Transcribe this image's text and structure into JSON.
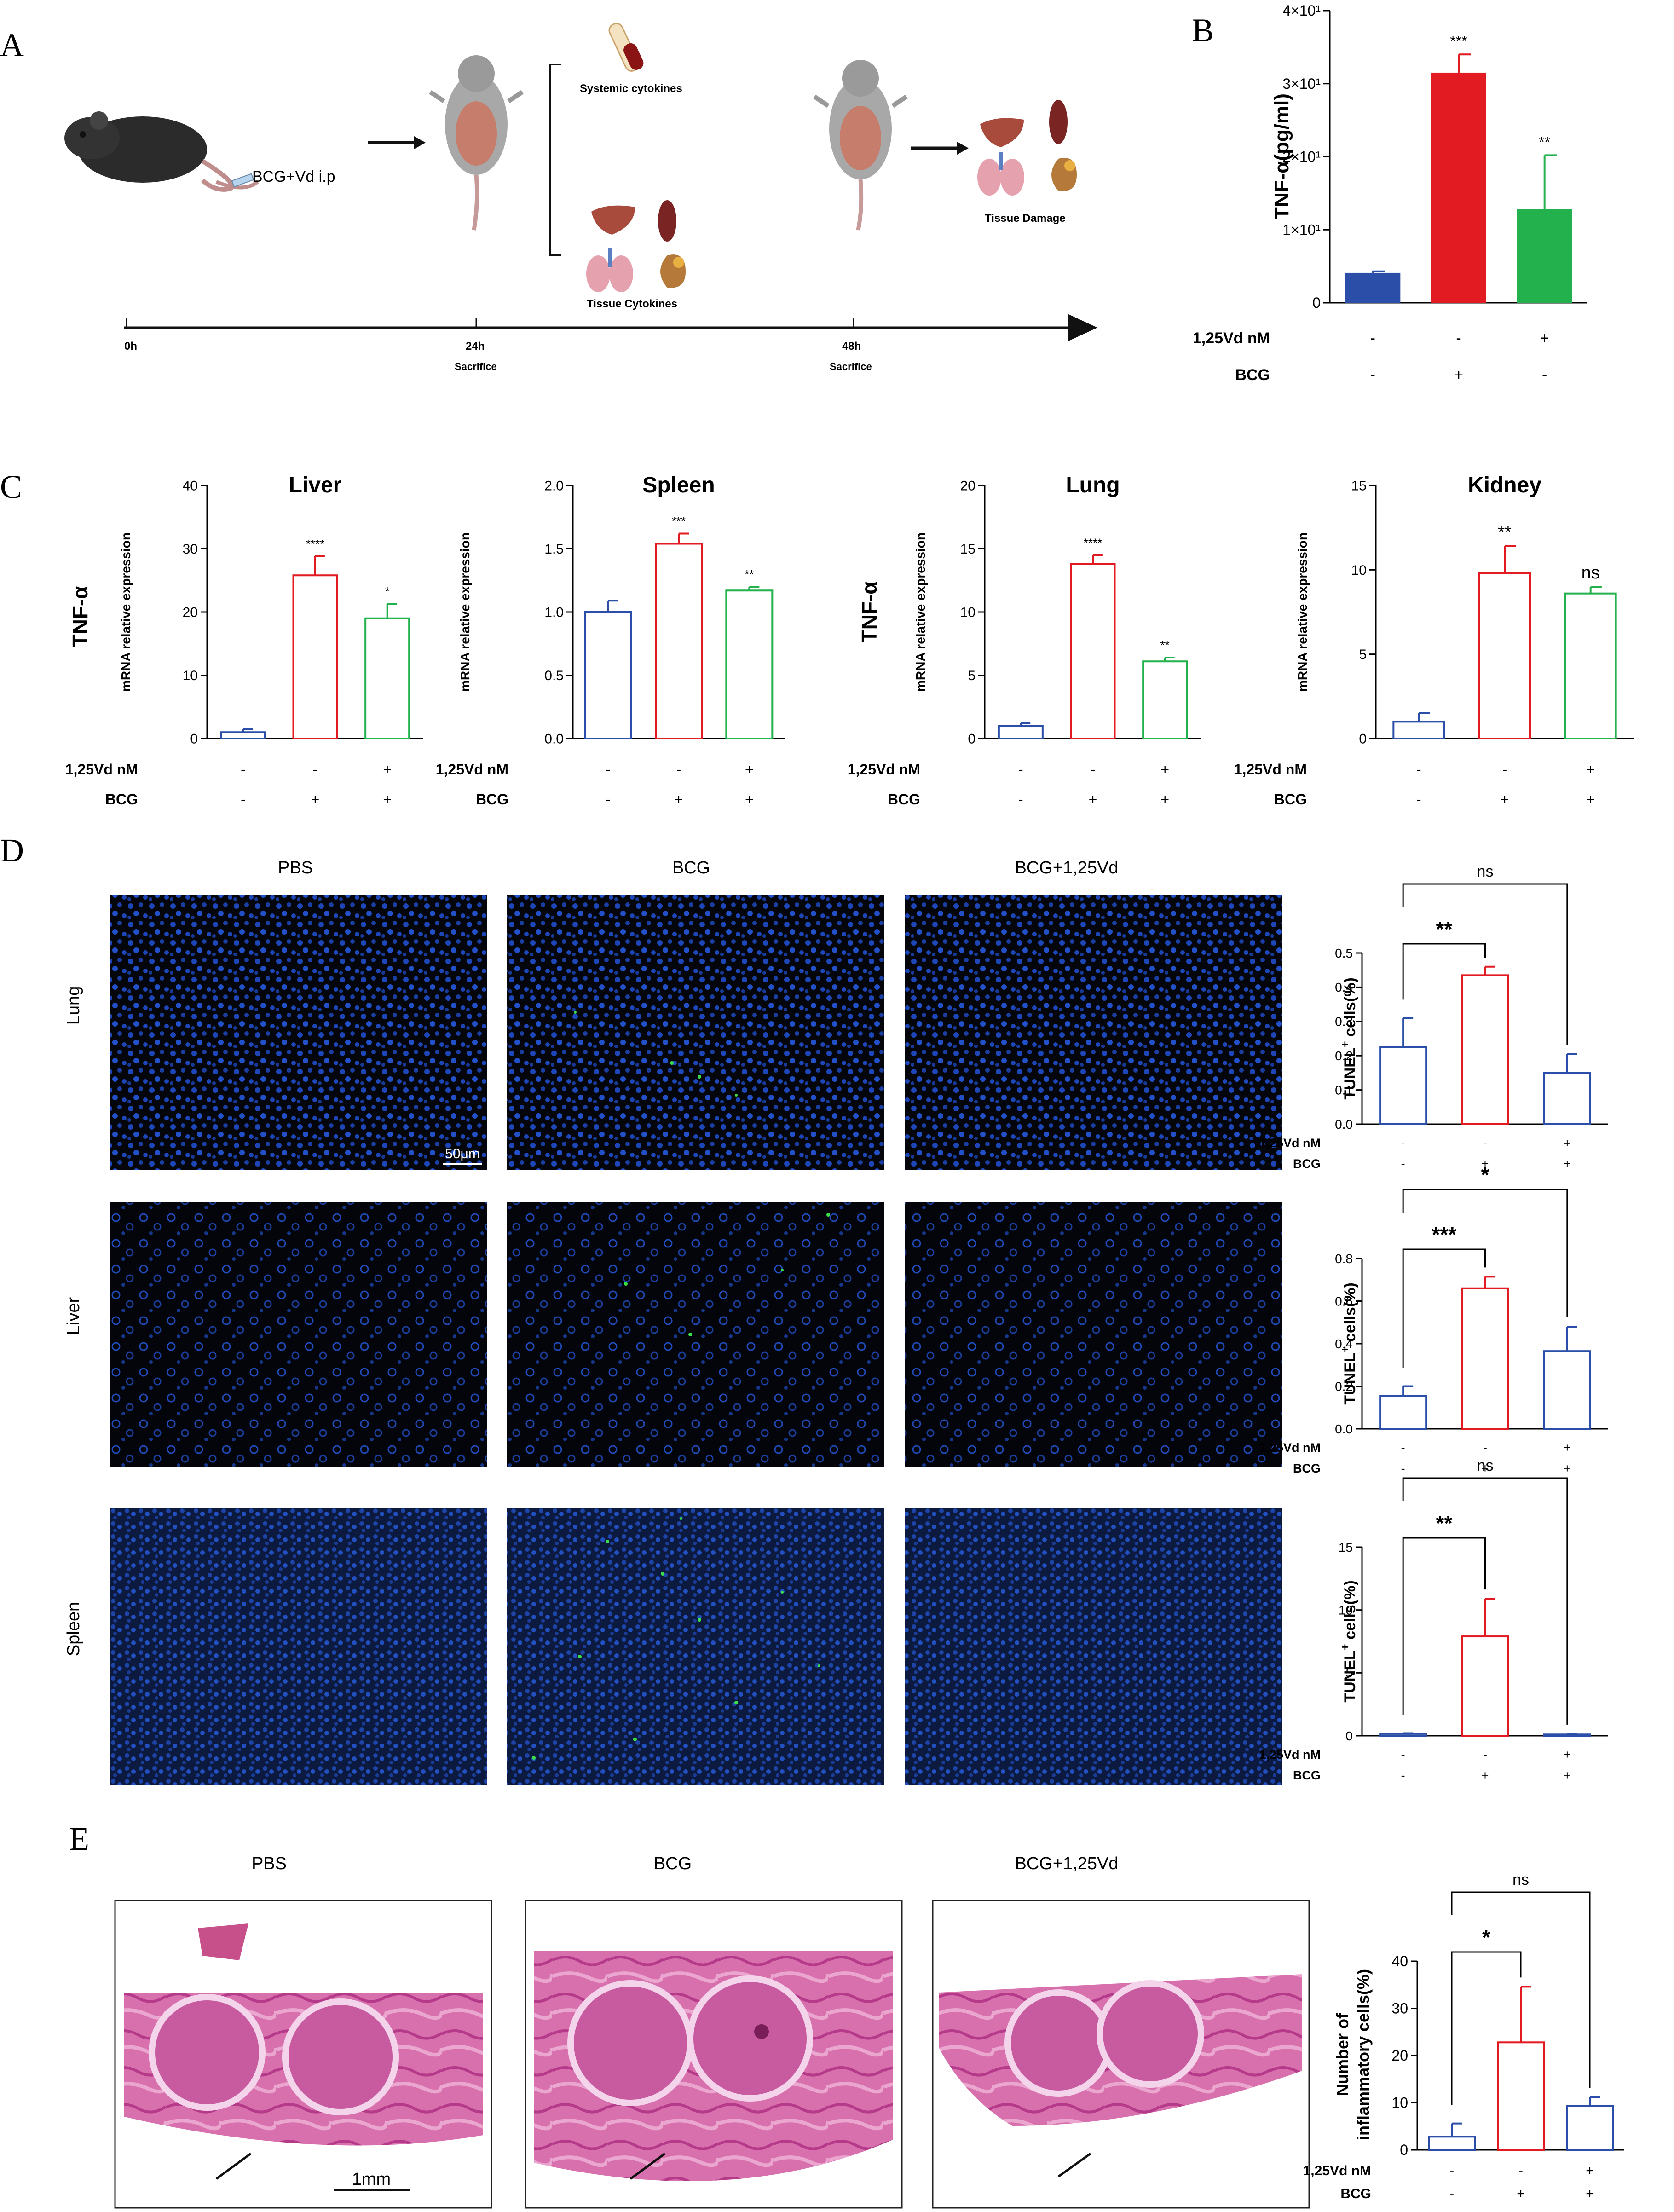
{
  "panel_letters": [
    "A",
    "B",
    "C",
    "D",
    "E"
  ],
  "colors": {
    "blue": "#2b4fa8",
    "red": "#e21b23",
    "green": "#22b14c",
    "stain_blue": "#1d46b8",
    "tissue_pink": "#c94a94",
    "micro_bg": "#05060b"
  },
  "panel_a": {
    "treatment_label": "BCG+Vd i.p",
    "systemic_label": "Systemic cytokines",
    "tissue_cytokines_label": "Tissue Cytokines",
    "tissue_damage_label": "Tissue Damage",
    "timeline": [
      {
        "time": "0h",
        "note": ""
      },
      {
        "time": "24h",
        "note": "Sacrifice"
      },
      {
        "time": "48h",
        "note": "Sacrifice"
      }
    ],
    "icons": [
      "mouse-icon",
      "dissected-mouse-icon",
      "blood-tube-icon",
      "liver-icon",
      "spleen-icon",
      "lung-icon",
      "kidney-icon",
      "arrow-icon"
    ]
  },
  "panel_b": {
    "ylabel": "TNF-α(pg/ml)",
    "yticks": [
      "0",
      "1×10¹",
      "2×10¹",
      "3×10¹",
      "4×10¹"
    ],
    "row_labels": [
      "1,25Vd nM",
      "BCG"
    ],
    "conditions": [
      [
        "-",
        "-",
        "+"
      ],
      [
        "-",
        "+",
        "-"
      ]
    ],
    "significance": [
      "",
      "***",
      "**"
    ]
  },
  "panel_c": {
    "row_title": "TNF-α",
    "ylabel": "mRNA relative expression",
    "row_labels": [
      "1,25Vd nM",
      "BCG"
    ],
    "conditions": [
      [
        "-",
        "-",
        "+"
      ],
      [
        "-",
        "+",
        "+"
      ]
    ],
    "charts": [
      {
        "title": "Liver",
        "yticks": [
          "0",
          "10",
          "20",
          "30",
          "40"
        ],
        "significance": [
          "",
          "****",
          "*"
        ]
      },
      {
        "title": "Spleen",
        "yticks": [
          "0.0",
          "0.5",
          "1.0",
          "1.5",
          "2.0"
        ],
        "significance": [
          "",
          "***",
          "**"
        ]
      },
      {
        "title": "Lung",
        "yticks": [
          "0",
          "5",
          "10",
          "15",
          "20"
        ],
        "significance": [
          "",
          "****",
          "**"
        ]
      },
      {
        "title": "Kidney",
        "yticks": [
          "0",
          "5",
          "10",
          "15"
        ],
        "significance": [
          "",
          "**",
          "ns"
        ]
      }
    ]
  },
  "panel_d": {
    "columns": [
      "PBS",
      "BCG",
      "BCG+1,25Vd"
    ],
    "rows": [
      "Lung",
      "Liver",
      "Spleen"
    ],
    "scale_bar": "50μm",
    "ylabel_main": "TUNEL",
    "ylabel_sup": "+",
    "ylabel_rest": " cells(%)",
    "row_labels": [
      "1,25Vd nM",
      "BCG"
    ],
    "conditions": [
      [
        "-",
        "-",
        "+"
      ],
      [
        "-",
        "+",
        "+"
      ]
    ],
    "charts": [
      {
        "yticks": [
          "0.0",
          "0.1",
          "0.2",
          "0.3",
          "0.4",
          "0.5"
        ],
        "sig_near": "**",
        "sig_far": "ns"
      },
      {
        "yticks": [
          "0.0",
          "0.2",
          "0.4",
          "0.6",
          "0.8"
        ],
        "sig_near": "***",
        "sig_far": "*"
      },
      {
        "yticks": [
          "0",
          "5",
          "10",
          "15"
        ],
        "sig_near": "**",
        "sig_far": "ns"
      }
    ]
  },
  "panel_e": {
    "columns": [
      "PBS",
      "BCG",
      "BCG+1,25Vd"
    ],
    "scale_bar": "1mm",
    "ylabel_line1": "Number of",
    "ylabel_line2": "inflammatory cells(%)",
    "yticks": [
      "0",
      "10",
      "20",
      "30",
      "40"
    ],
    "row_labels": [
      "1,25Vd nM",
      "BCG"
    ],
    "conditions": [
      [
        "-",
        "-",
        "+"
      ],
      [
        "-",
        "+",
        "+"
      ]
    ],
    "sig_near": "*",
    "sig_far": "ns"
  },
  "chart_data": [
    {
      "id": "B",
      "type": "bar",
      "title": "",
      "xlabel": "",
      "ylabel": "TNF-α(pg/ml)",
      "ylim": [
        0,
        40
      ],
      "categories": [
        "1,25Vd -, BCG -",
        "1,25Vd -, BCG +",
        "1,25Vd +, BCG -"
      ],
      "series": [
        {
          "values": [
            4.1,
            31.5,
            12.8
          ],
          "errors": [
            0.2,
            2.5,
            7.4
          ]
        }
      ],
      "bar_colors": [
        "#2b4fa8",
        "#e21b23",
        "#22b14c"
      ],
      "fill": "solid",
      "annotations": [
        "",
        "***",
        "**"
      ],
      "grid": false
    },
    {
      "id": "C-liver",
      "type": "bar",
      "title": "Liver",
      "ylabel": "mRNA relative expression",
      "ylim": [
        0,
        40
      ],
      "categories": [
        "-/-",
        "-/+",
        "+/+"
      ],
      "series": [
        {
          "values": [
            1.0,
            25.8,
            19.0
          ],
          "errors": [
            0.5,
            3.0,
            2.3
          ]
        }
      ],
      "bar_colors": [
        "#2b4fa8",
        "#e21b23",
        "#22b14c"
      ],
      "fill": "outline",
      "annotations": [
        "",
        "****",
        "*"
      ],
      "grid": false
    },
    {
      "id": "C-spleen",
      "type": "bar",
      "title": "Spleen",
      "ylabel": "mRNA relative expression",
      "ylim": [
        0,
        2.0
      ],
      "categories": [
        "-/-",
        "-/+",
        "+/+"
      ],
      "series": [
        {
          "values": [
            1.0,
            1.54,
            1.17
          ],
          "errors": [
            0.09,
            0.08,
            0.03
          ]
        }
      ],
      "bar_colors": [
        "#2b4fa8",
        "#e21b23",
        "#22b14c"
      ],
      "fill": "outline",
      "annotations": [
        "",
        "***",
        "**"
      ],
      "grid": false
    },
    {
      "id": "C-lung",
      "type": "bar",
      "title": "Lung",
      "ylabel": "mRNA relative expression",
      "ylim": [
        0,
        20
      ],
      "categories": [
        "-/-",
        "-/+",
        "+/+"
      ],
      "series": [
        {
          "values": [
            1.0,
            13.8,
            6.1
          ],
          "errors": [
            0.2,
            0.7,
            0.3
          ]
        }
      ],
      "bar_colors": [
        "#2b4fa8",
        "#e21b23",
        "#22b14c"
      ],
      "fill": "outline",
      "annotations": [
        "",
        "****",
        "**"
      ],
      "grid": false
    },
    {
      "id": "C-kidney",
      "type": "bar",
      "title": "Kidney",
      "ylabel": "mRNA relative expression",
      "ylim": [
        0,
        15
      ],
      "categories": [
        "-/-",
        "-/+",
        "+/+"
      ],
      "series": [
        {
          "values": [
            1.0,
            9.8,
            8.6
          ],
          "errors": [
            0.5,
            1.6,
            0.4
          ]
        }
      ],
      "bar_colors": [
        "#2b4fa8",
        "#e21b23",
        "#22b14c"
      ],
      "fill": "outline",
      "annotations": [
        "",
        "**",
        "ns"
      ],
      "grid": false
    },
    {
      "id": "D-lung",
      "type": "bar",
      "title": "",
      "ylabel": "TUNEL+ cells(%)",
      "ylim": [
        0,
        0.5
      ],
      "categories": [
        "-/-",
        "-/+",
        "+/+"
      ],
      "series": [
        {
          "values": [
            0.225,
            0.435,
            0.15
          ],
          "errors": [
            0.085,
            0.025,
            0.055
          ]
        }
      ],
      "bar_colors": [
        "#2b4fa8",
        "#e21b23",
        "#2b4fa8"
      ],
      "fill": "outline",
      "brackets": [
        {
          "from": 0,
          "to": 1,
          "label": "**"
        },
        {
          "from": 0,
          "to": 2,
          "label": "ns"
        }
      ],
      "grid": false
    },
    {
      "id": "D-liver",
      "type": "bar",
      "title": "",
      "ylabel": "TUNEL+ cells(%)",
      "ylim": [
        0,
        0.8
      ],
      "categories": [
        "-/-",
        "-/+",
        "+/+"
      ],
      "series": [
        {
          "values": [
            0.155,
            0.66,
            0.365
          ],
          "errors": [
            0.045,
            0.055,
            0.115
          ]
        }
      ],
      "bar_colors": [
        "#2b4fa8",
        "#e21b23",
        "#2b4fa8"
      ],
      "fill": "outline",
      "brackets": [
        {
          "from": 0,
          "to": 1,
          "label": "***"
        },
        {
          "from": 0,
          "to": 2,
          "label": "*"
        }
      ],
      "grid": false
    },
    {
      "id": "D-spleen",
      "type": "bar",
      "title": "",
      "ylabel": "TUNEL+ cells(%)",
      "ylim": [
        0,
        15
      ],
      "categories": [
        "-/-",
        "-/+",
        "+/+"
      ],
      "series": [
        {
          "values": [
            0.15,
            7.9,
            0.1
          ],
          "errors": [
            0.05,
            3.0,
            0.05
          ]
        }
      ],
      "bar_colors": [
        "#2b4fa8",
        "#e21b23",
        "#2b4fa8"
      ],
      "fill": "outline",
      "brackets": [
        {
          "from": 0,
          "to": 1,
          "label": "**"
        },
        {
          "from": 0,
          "to": 2,
          "label": "ns"
        }
      ],
      "grid": false
    },
    {
      "id": "E",
      "type": "bar",
      "title": "",
      "ylabel": "Number of inflammatory cells(%)",
      "ylim": [
        0,
        40
      ],
      "categories": [
        "-/-",
        "-/+",
        "+/+"
      ],
      "series": [
        {
          "values": [
            2.8,
            22.8,
            9.3
          ],
          "errors": [
            2.8,
            11.8,
            1.9
          ]
        }
      ],
      "bar_colors": [
        "#2b4fa8",
        "#e21b23",
        "#2b4fa8"
      ],
      "fill": "outline",
      "brackets": [
        {
          "from": 0,
          "to": 1,
          "label": "*"
        },
        {
          "from": 0,
          "to": 2,
          "label": "ns"
        }
      ],
      "grid": false
    }
  ]
}
